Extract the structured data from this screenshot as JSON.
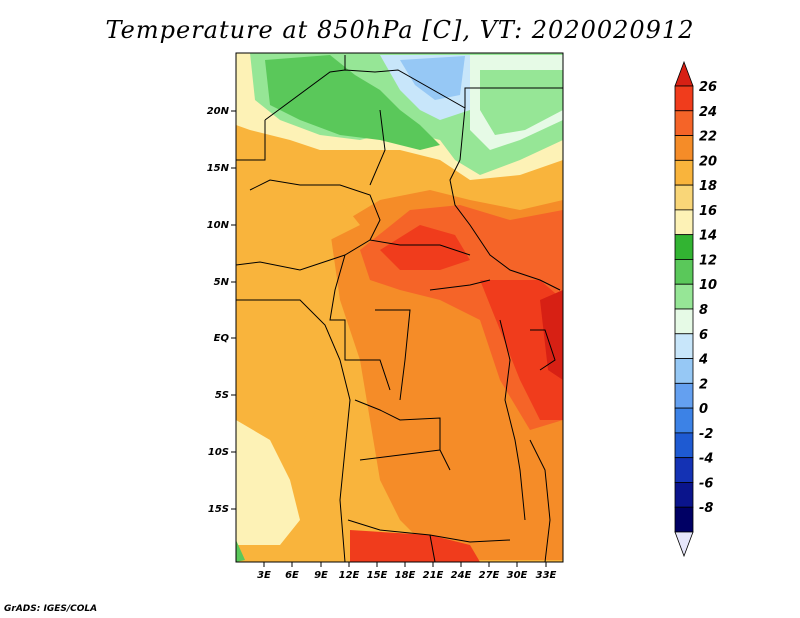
{
  "title": "Temperature at 850hPa [C], VT: 2020020912",
  "lat_labels": [
    "20N",
    "15N",
    "10N",
    "5N",
    "EQ",
    "5S",
    "10S",
    "15S"
  ],
  "lon_labels": [
    "3E",
    "6E",
    "9E",
    "12E",
    "15E",
    "18E",
    "21E",
    "24E",
    "27E",
    "30E",
    "33E"
  ],
  "colorbar": {
    "labels": [
      "26",
      "24",
      "22",
      "20",
      "18",
      "16",
      "14",
      "12",
      "10",
      "8",
      "6",
      "4",
      "2",
      "0",
      "-2",
      "-4",
      "-6",
      "-8"
    ],
    "colors": [
      "#d72014",
      "#f03c1c",
      "#f56428",
      "#f58c28",
      "#f9b43c",
      "#f9d678",
      "#fdf2b6",
      "#32b432",
      "#5ac85a",
      "#96e696",
      "#e6fae6",
      "#c8e6fa",
      "#96c8f5",
      "#64a0f0",
      "#3c82e6",
      "#1e5ad2",
      "#1432b4",
      "#0a148c",
      "#000064",
      "#e6e6fa"
    ]
  },
  "credit": "GrADS: IGES/COLA"
}
